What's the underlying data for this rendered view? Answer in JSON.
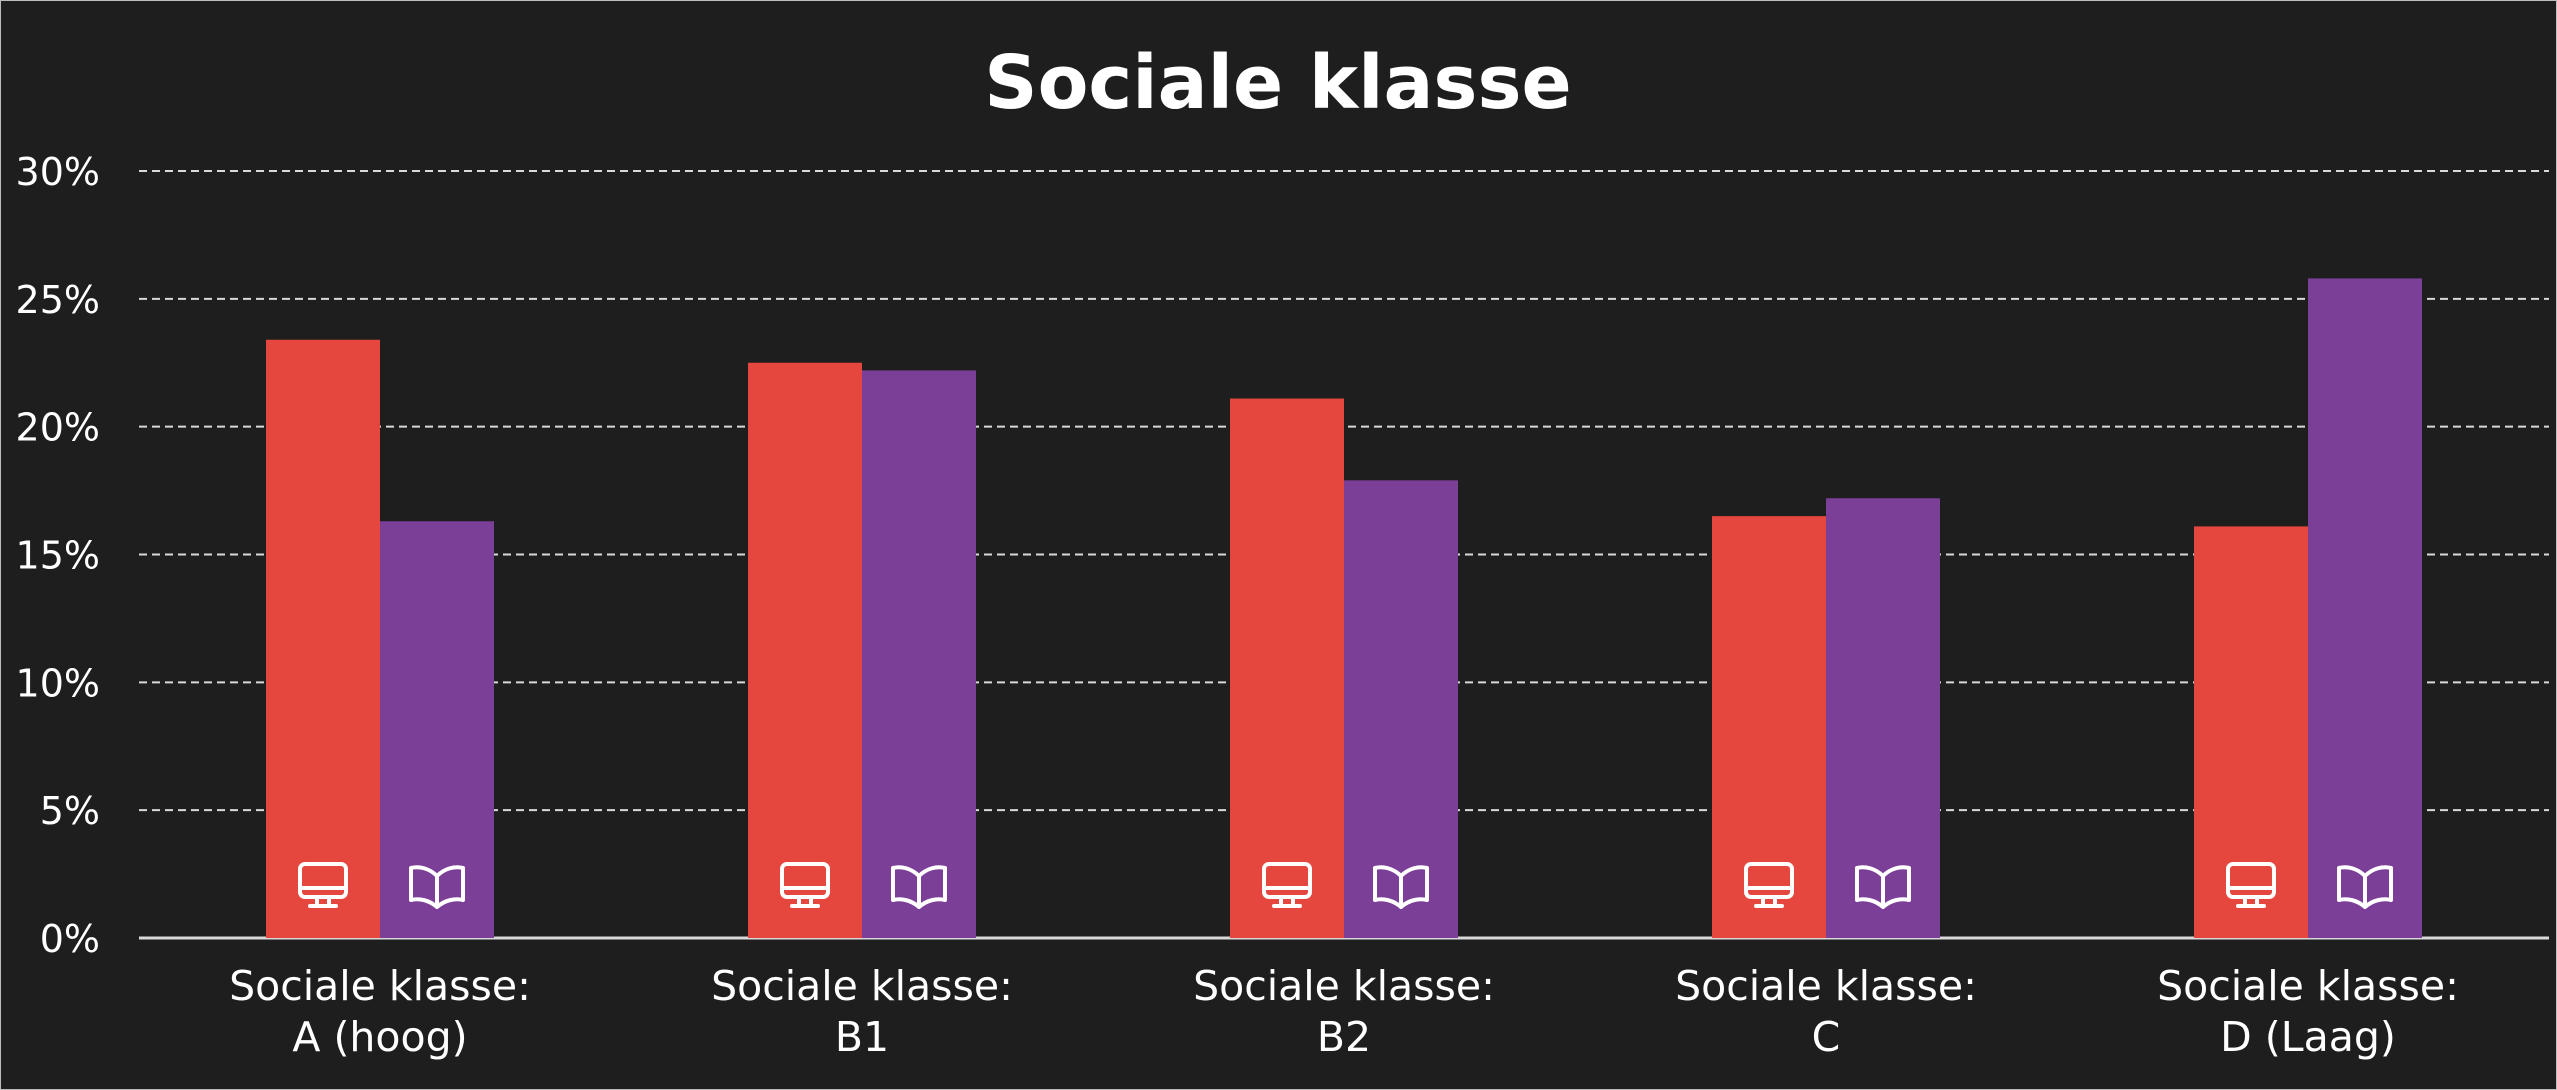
{
  "chart_data": {
    "type": "bar",
    "title": "Sociale klasse",
    "xlabel": "",
    "ylabel": "",
    "ylim": [
      0,
      30
    ],
    "yticks": [
      0,
      5,
      10,
      15,
      20,
      25,
      30
    ],
    "ytick_labels": [
      "0%",
      "5%",
      "10%",
      "15%",
      "20%",
      "25%",
      "30%"
    ],
    "grid": true,
    "legend": "none",
    "categories": [
      [
        "Sociale klasse:",
        "A (hoog)"
      ],
      [
        "Sociale klasse:",
        "B1"
      ],
      [
        "Sociale klasse:",
        "B2"
      ],
      [
        "Sociale klasse:",
        "C"
      ],
      [
        "Sociale klasse:",
        "D (Laag)"
      ]
    ],
    "series": [
      {
        "icon": "monitor-icon",
        "color": "#e5463d",
        "values": [
          23.4,
          22.5,
          21.1,
          16.5,
          16.1
        ]
      },
      {
        "icon": "book-icon",
        "color": "#7b3f98",
        "values": [
          16.3,
          22.2,
          17.9,
          17.2,
          25.8
        ]
      }
    ]
  },
  "colors": {
    "background": "#1e1e1e",
    "text": "#ffffff",
    "grid": "#d9d9d9"
  }
}
